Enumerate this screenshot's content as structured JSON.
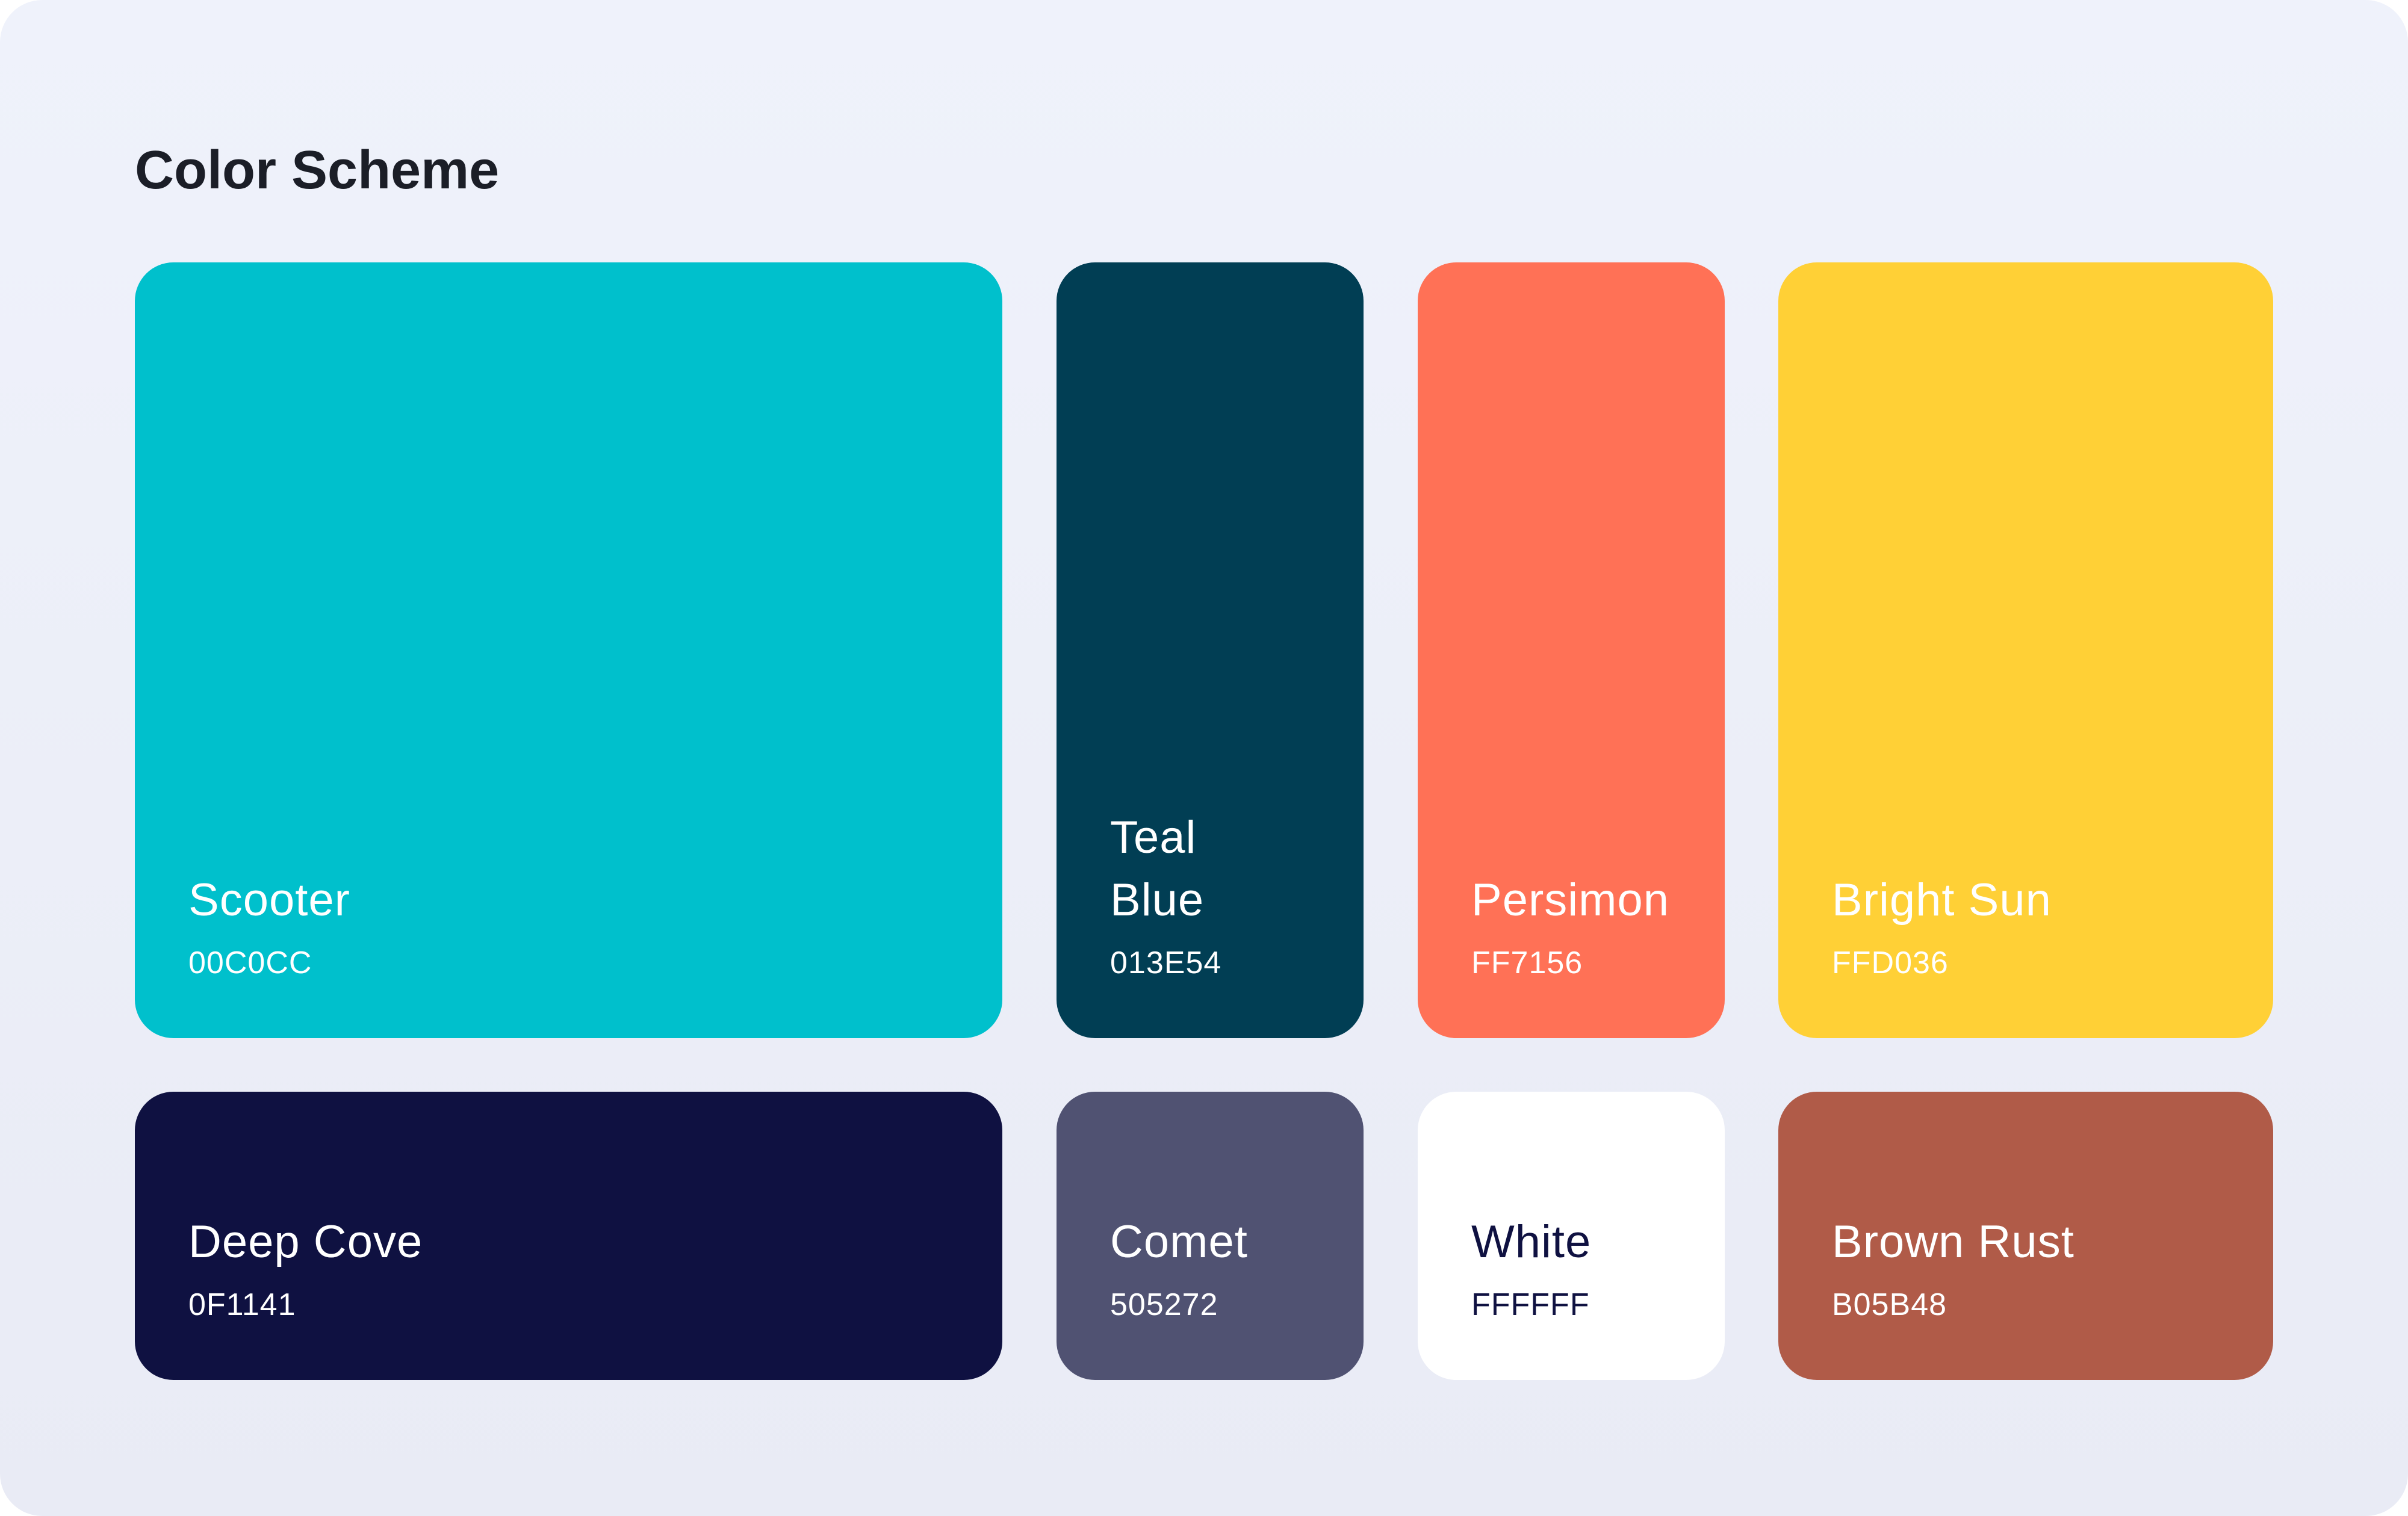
{
  "title": "Color Scheme",
  "swatches": [
    {
      "name": "Scooter",
      "hex": "00C0CC",
      "color": "#00C0CC",
      "text_color": "#FFFFFF"
    },
    {
      "name": "Teal\nBlue",
      "hex": "013E54",
      "color": "#013E54",
      "text_color": "#FFFFFF"
    },
    {
      "name": "Persimon",
      "hex": "FF7156",
      "color": "#FF7156",
      "text_color": "#FFFFFF"
    },
    {
      "name": "Bright Sun",
      "hex": "FFD036",
      "color": "#FFD036",
      "text_color": "#FFFFFF"
    },
    {
      "name": "Deep Cove",
      "hex": "0F1141",
      "color": "#0F1141",
      "text_color": "#FFFFFF"
    },
    {
      "name": "Comet",
      "hex": "505272",
      "color": "#505272",
      "text_color": "#FFFFFF"
    },
    {
      "name": "White",
      "hex": "FFFFFF",
      "color": "#FFFFFF",
      "text_color": "#0F1141"
    },
    {
      "name": "Brown Rust",
      "hex": "B05B48",
      "color": "#B05B48",
      "text_color": "#FFFFFF"
    }
  ]
}
